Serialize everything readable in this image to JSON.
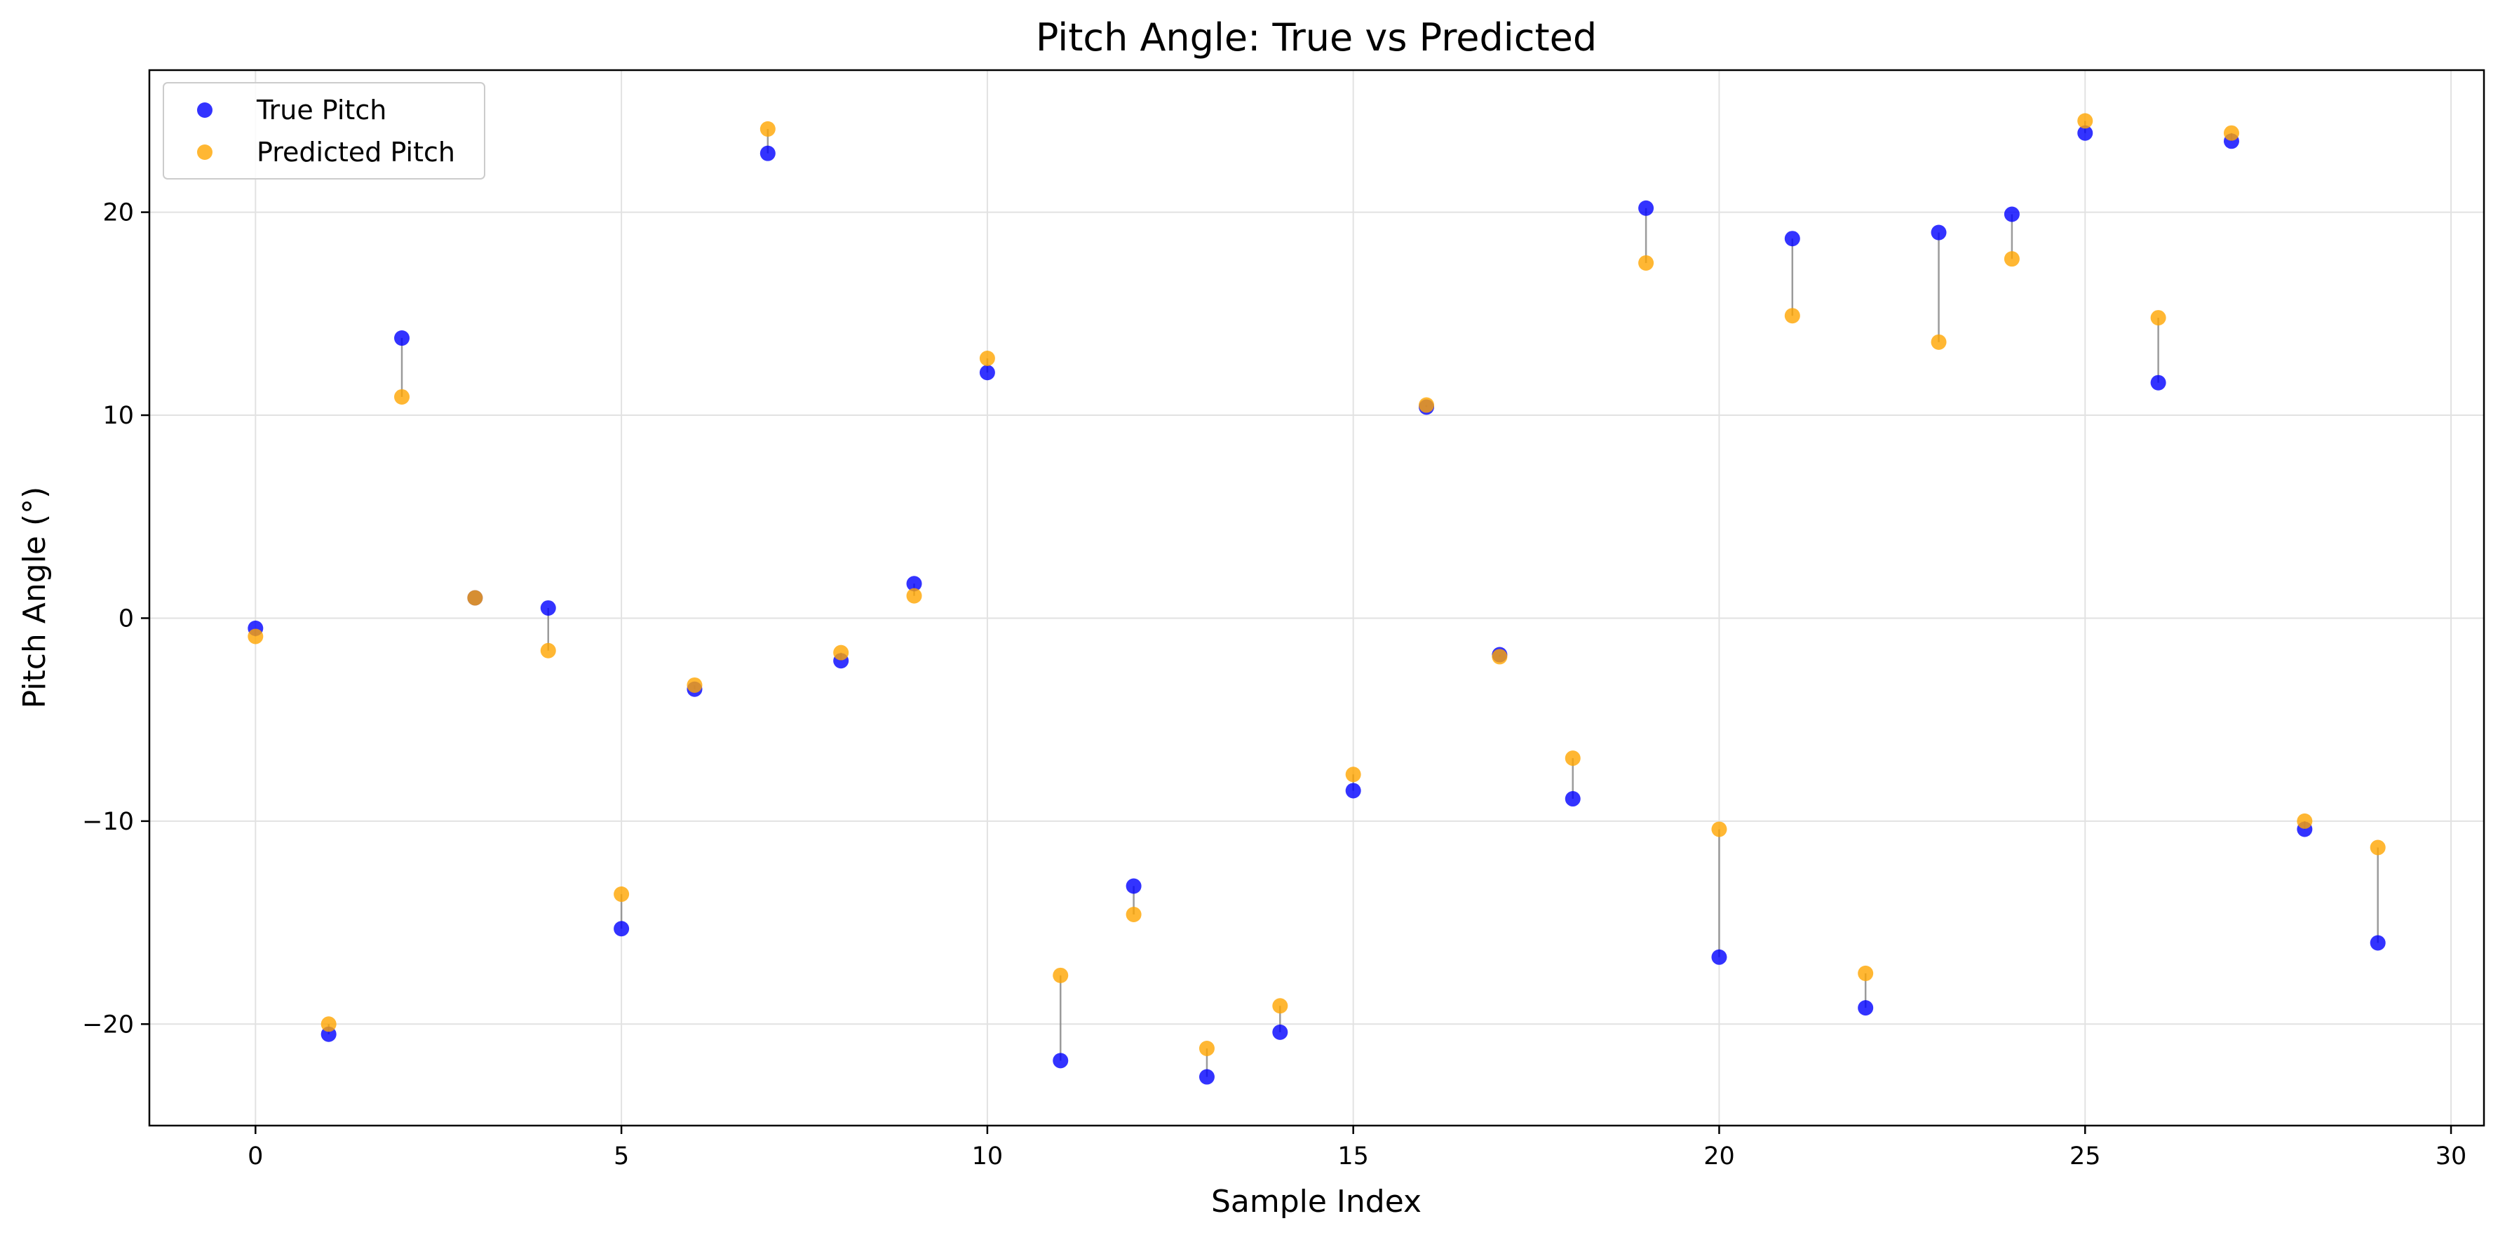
{
  "chart_data": {
    "type": "scatter",
    "title": "Pitch Angle: True vs Predicted",
    "xlabel": "Sample Index",
    "ylabel": "Pitch Angle (°)",
    "xlim": [
      -1.45,
      30.45
    ],
    "ylim": [
      -25.0,
      27.0
    ],
    "xticks": [
      0,
      5,
      10,
      15,
      20,
      25,
      30
    ],
    "yticks": [
      -20,
      -10,
      0,
      10,
      20
    ],
    "xtick_labels": [
      "0",
      "5",
      "10",
      "15",
      "20",
      "25",
      "30"
    ],
    "ytick_labels": [
      "−20",
      "−10",
      "0",
      "10",
      "20"
    ],
    "grid": true,
    "legend_position": "top-left",
    "connectors": true,
    "x": [
      0,
      1,
      2,
      3,
      4,
      5,
      6,
      7,
      8,
      9,
      10,
      11,
      12,
      13,
      14,
      15,
      16,
      17,
      18,
      19,
      20,
      21,
      22,
      23,
      24,
      25,
      26,
      27,
      28,
      29
    ],
    "series": [
      {
        "name": "True Pitch",
        "color": "#0000ff",
        "values": [
          -0.5,
          -20.5,
          13.8,
          1.0,
          0.5,
          -15.3,
          -3.5,
          22.9,
          -2.1,
          1.7,
          12.1,
          -21.8,
          -13.2,
          -22.6,
          -20.4,
          -8.5,
          10.4,
          -1.8,
          -8.9,
          20.2,
          -16.7,
          18.7,
          -19.2,
          19.0,
          19.9,
          23.9,
          11.6,
          23.5,
          -10.4,
          -16.0
        ]
      },
      {
        "name": "Predicted Pitch",
        "color": "#ffa500",
        "values": [
          -0.9,
          -20.0,
          10.9,
          1.0,
          -1.6,
          -13.6,
          -3.3,
          24.1,
          -1.7,
          1.1,
          12.8,
          -17.6,
          -14.6,
          -21.2,
          -19.1,
          -7.7,
          10.5,
          -1.9,
          -6.9,
          17.5,
          -10.4,
          14.9,
          -17.5,
          13.6,
          17.7,
          24.5,
          14.8,
          23.9,
          -10.0,
          -11.3
        ]
      }
    ]
  }
}
